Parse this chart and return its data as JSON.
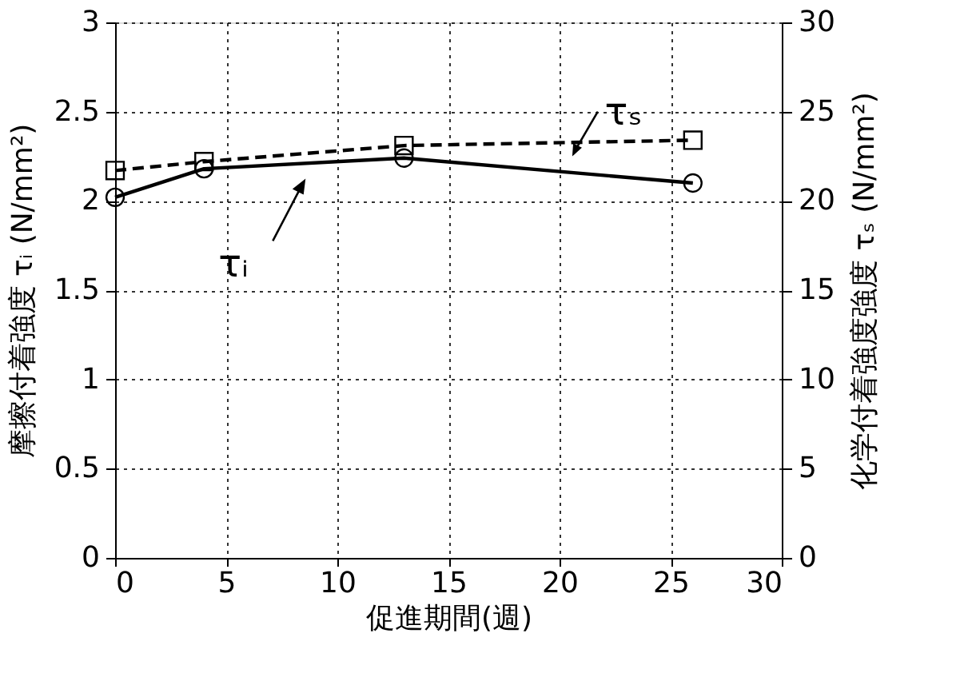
{
  "chart_data": {
    "type": "line",
    "xlabel": "促進期間(週)",
    "ylabel": "摩擦付着強度 τᵢ (N/mm²)",
    "y2label": "化学付着強度強度 τₛ (N/mm²)",
    "xlim": [
      0,
      30
    ],
    "xticks": [
      0,
      5,
      10,
      15,
      20,
      25,
      30
    ],
    "ylim": [
      0,
      3
    ],
    "yticks": [
      0,
      0.5,
      1,
      1.5,
      2,
      2.5,
      3
    ],
    "y2lim": [
      0,
      30
    ],
    "y2ticks": [
      0,
      5,
      10,
      15,
      20,
      25,
      30
    ],
    "grid": true,
    "series": [
      {
        "x": [
          0,
          4,
          13,
          26
        ],
        "values": [
          2.02,
          2.18,
          2.24,
          2.1
        ],
        "color": "#000000",
        "marker": "circle",
        "line_style": "solid"
      },
      {
        "x": [
          0,
          4,
          13,
          26
        ],
        "values": [
          21.7,
          22.2,
          23.1,
          23.4
        ],
        "color": "#000000",
        "marker": "square",
        "line_style": "dashed",
        "axis": "y2"
      }
    ],
    "annotations": [
      "τᵢ",
      "τₛ"
    ]
  }
}
